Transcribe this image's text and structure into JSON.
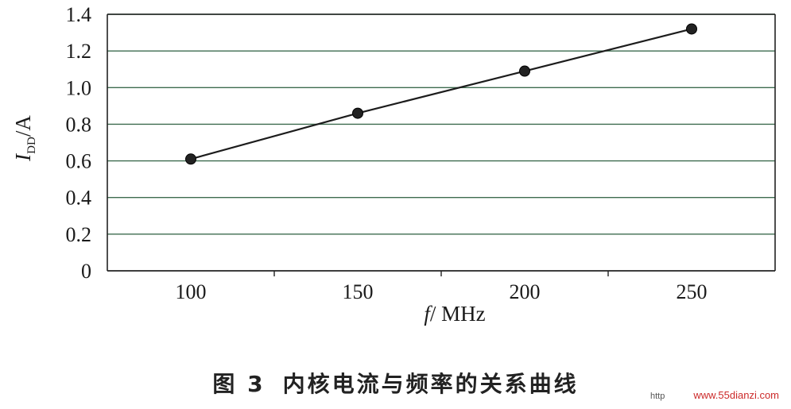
{
  "chart_data": {
    "type": "line",
    "title": "",
    "xlabel": "f / MHz",
    "xlabel_italic_symbol": "f",
    "xlabel_unit": "/ MHz",
    "ylabel": "IDD/A",
    "ylabel_symbol": "I",
    "ylabel_subscript": "DD",
    "ylabel_unit": "/A",
    "x_ticks": [
      "100",
      "150",
      "200",
      "250"
    ],
    "y_ticks": [
      "0",
      "0.2",
      "0.4",
      "0.6",
      "0.8",
      "1.0",
      "1.2",
      "1.4"
    ],
    "xlim": [
      75,
      275
    ],
    "ylim": [
      0,
      1.4
    ],
    "grid": "horizontal",
    "series": [
      {
        "x": [
          100,
          150,
          200,
          250
        ],
        "values": [
          0.61,
          0.86,
          1.09,
          1.32
        ]
      }
    ],
    "colors": {
      "line": "#1c1c1c",
      "marker": "#222222",
      "grid": "#3d6b4f",
      "axis": "#222222"
    }
  },
  "caption": {
    "figure_number": "图 3",
    "text": "内核电流与频率的关系曲线"
  },
  "watermark": {
    "prefix": "http",
    "url": "www.55dianzi.com"
  }
}
